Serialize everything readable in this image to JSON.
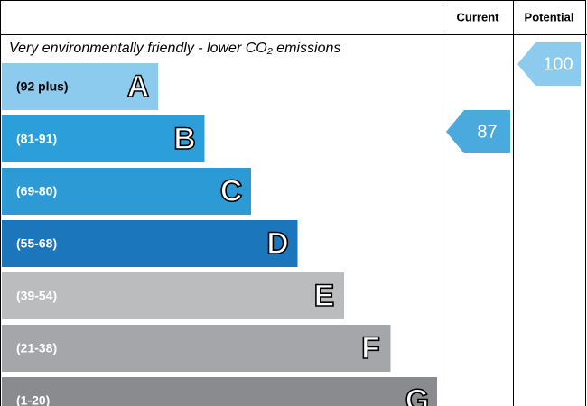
{
  "chart_data": {
    "type": "epc",
    "title": "Very environmentally friendly - lower CO₂ emissions",
    "column_headers": [
      "Current",
      "Potential"
    ],
    "bands": [
      {
        "range": "(92 plus)",
        "letter": "A",
        "color": "#8ccbed"
      },
      {
        "range": "(81-91)",
        "letter": "B",
        "color": "#2c9fda"
      },
      {
        "range": "(69-80)",
        "letter": "C",
        "color": "#2c9ad5"
      },
      {
        "range": "(55-68)",
        "letter": "D",
        "color": "#1c76bb"
      },
      {
        "range": "(39-54)",
        "letter": "E",
        "color": "#bbbcbe"
      },
      {
        "range": "(21-38)",
        "letter": "F",
        "color": "#a4a6a9"
      },
      {
        "range": "(1-20)",
        "letter": "G",
        "color": "#898b8e"
      }
    ],
    "current": {
      "value": 87,
      "color": "#4aa9dd"
    },
    "potential": {
      "value": 100,
      "color": "#8ccbed"
    }
  }
}
